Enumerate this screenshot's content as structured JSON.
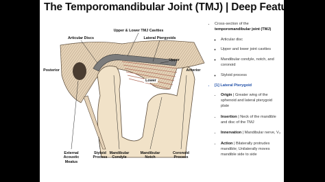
{
  "header": {
    "title": "The Temporomandibular Joint (TMJ) | Deep Features"
  },
  "figure": {
    "labels": {
      "cavities": "Upper & Lower TMJ Cavities",
      "discs": "Articular Discs",
      "pterygoids": "Lateral Ptergyoids",
      "posterior": "Posterior",
      "upper": "Upper",
      "lower": "Lower",
      "anterior": "Anterior",
      "meatus": "External Acoustic Meatus",
      "styloid": "Styloid Process",
      "condyle": "Mandibular Condyle",
      "notch": "Mandibular Notch",
      "coronoid": "Coronoid Process"
    }
  },
  "sidebar": {
    "intro": {
      "text": "Cross-section of the",
      "bold": "temporomandibular joint (TMJ)"
    },
    "bullets": [
      "Articular disc",
      "Upper and lower joint cavities",
      "Mandibular condyle, notch, and coronoid",
      "Styloid process"
    ],
    "section": "[1] Lateral Pterygoid",
    "items": [
      {
        "term": "Origin",
        "detail": "| Greater wing of the sphenoid and lateral pterygoid plate"
      },
      {
        "term": "Insertion",
        "detail": "| Neck of the mandible and disc of the TMJ"
      },
      {
        "term": "Innervation",
        "detail": "| Mandibular nerve, V₃"
      },
      {
        "term": "Action",
        "detail": "| Bilaterally protrudes mandible; Unilaterally moves mandible side to side"
      }
    ]
  }
}
